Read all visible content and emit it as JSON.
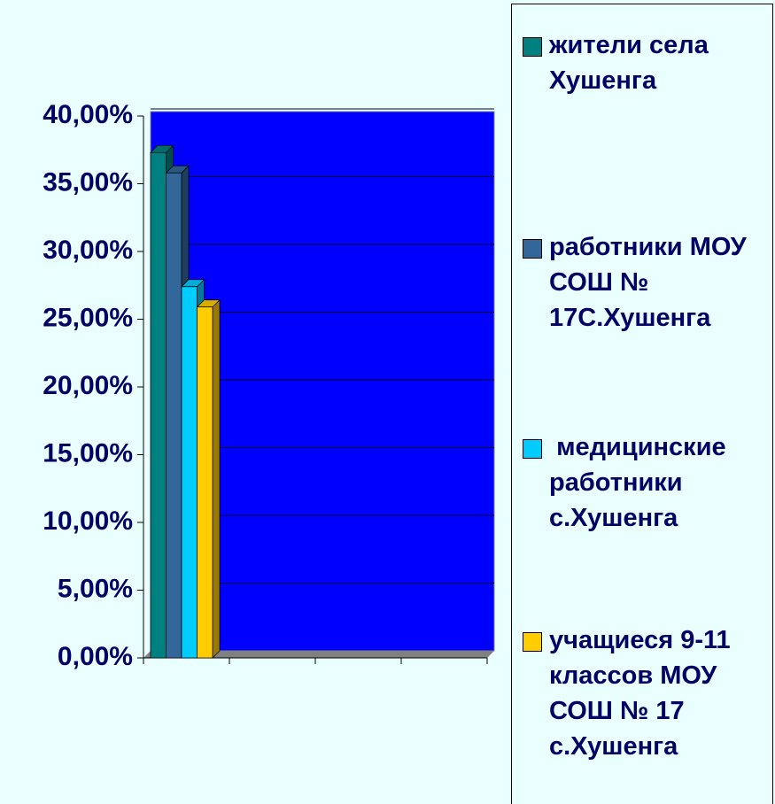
{
  "chart_data": {
    "type": "bar",
    "categories": [
      null,
      null,
      null,
      null
    ],
    "series": [
      {
        "name": "жители села Хушенга",
        "color": "#008080",
        "values": [
          37.3,
          null,
          null,
          null
        ]
      },
      {
        "name": "работники МОУ СОШ № 17С.Хушенга",
        "color": "#336699",
        "values": [
          35.8,
          null,
          null,
          null
        ]
      },
      {
        "name": " медицинские работники с.Хушенга",
        "color": "#00ccff",
        "values": [
          27.4,
          null,
          null,
          null
        ]
      },
      {
        "name": "учащиеся 9-11 классов МОУ СОШ № 17 с.Хушенга",
        "color": "#ffcc00",
        "values": [
          25.9,
          null,
          null,
          null
        ]
      }
    ],
    "ylim": [
      0,
      40
    ],
    "yticks": [
      {
        "value": 0,
        "label": "0,00%"
      },
      {
        "value": 5,
        "label": "5,00%"
      },
      {
        "value": 10,
        "label": "10,00%"
      },
      {
        "value": 15,
        "label": "15,00%"
      },
      {
        "value": 20,
        "label": "20,00%"
      },
      {
        "value": 25,
        "label": "25,00%"
      },
      {
        "value": 30,
        "label": "30,00%"
      },
      {
        "value": 35,
        "label": "35,00%"
      },
      {
        "value": 40,
        "label": "40,00%"
      }
    ],
    "grid": true,
    "legend": "right"
  }
}
